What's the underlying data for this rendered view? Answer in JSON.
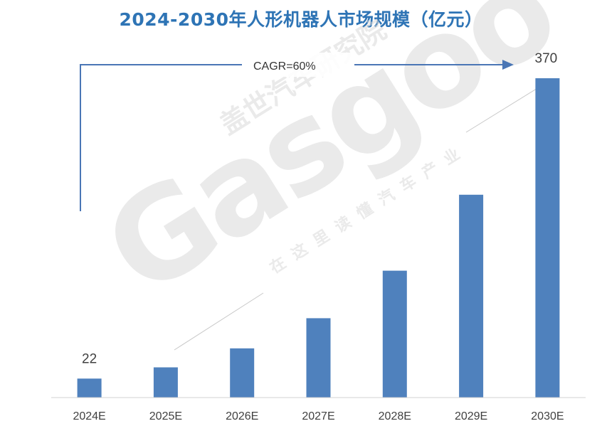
{
  "chart_data": {
    "type": "bar",
    "title": "2024-2030年人形机器人市场规模（亿元）",
    "xlabel": "",
    "ylabel": "",
    "categories": [
      "2024E",
      "2025E",
      "2026E",
      "2027E",
      "2028E",
      "2029E",
      "2030E"
    ],
    "values": [
      22,
      35,
      57,
      92,
      147,
      235,
      370
    ],
    "data_labels": {
      "2024E": "22",
      "2030E": "370"
    },
    "ylim": [
      0,
      370
    ],
    "grid": false,
    "legend": "none",
    "bar_color": "#4f81bd",
    "annotation": {
      "text": "CAGR=60%",
      "type": "growth-arrow",
      "from": "2024E",
      "to": "2030E"
    }
  },
  "watermark": {
    "brand": "Gasgoo",
    "cn_name": "盖世汽车研究院",
    "slogan": "在这里读懂汽车产业",
    "color": "#d9d9d9"
  }
}
